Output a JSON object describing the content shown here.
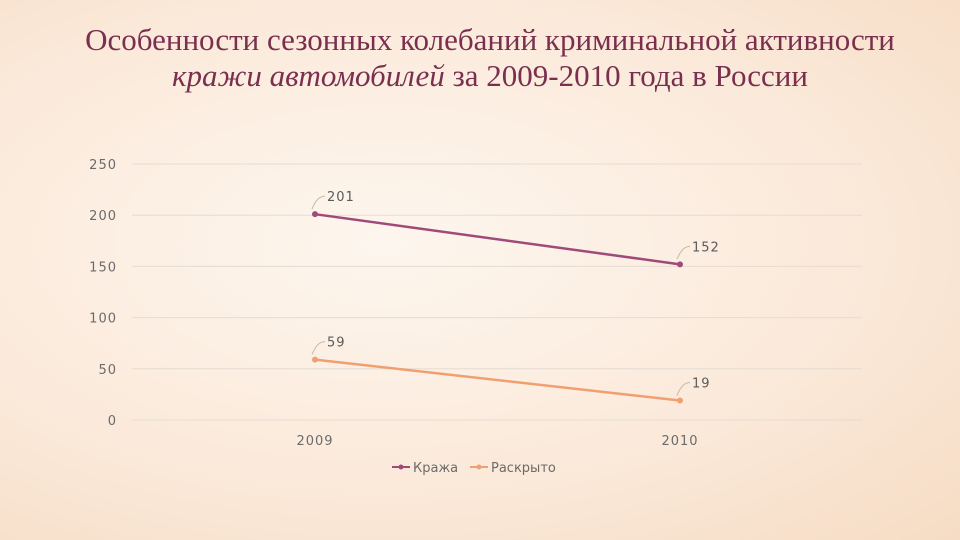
{
  "title": {
    "part1": "Особенности сезонных колебаний криминальной активности ",
    "part2": "кражи автомобилей",
    "part3": " за 2009-2010 года в России"
  },
  "colors": {
    "title": "#7a2f4e",
    "series_theft": "#a04a7a",
    "series_solved": "#f0a070",
    "grid": "#e6dcd2"
  },
  "chart_data": {
    "type": "line",
    "x": [
      "2009",
      "2010"
    ],
    "ylim": [
      0,
      250
    ],
    "yticks": [
      0,
      50,
      100,
      150,
      200,
      250
    ],
    "grid": true,
    "legend_position": "bottom",
    "series": [
      {
        "name": "Кража",
        "values": [
          201,
          152
        ],
        "color": "#a04a7a"
      },
      {
        "name": "Раскрыто",
        "values": [
          59,
          19
        ],
        "color": "#f0a070"
      }
    ]
  }
}
